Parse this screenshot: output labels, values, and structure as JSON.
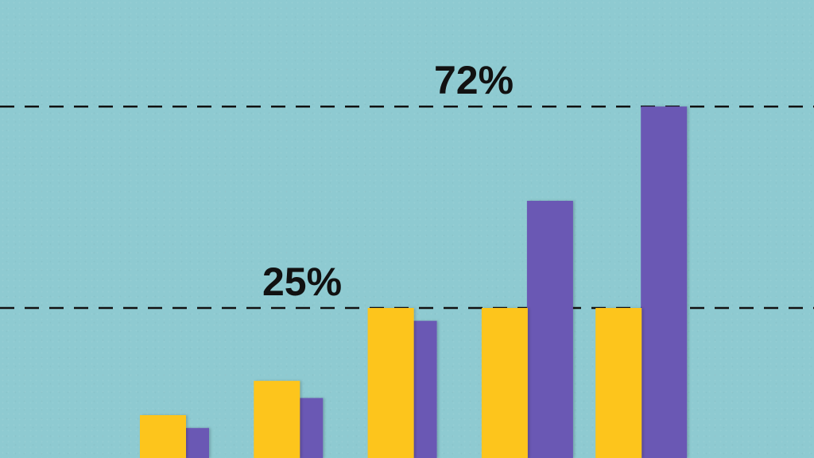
{
  "chart_data": {
    "type": "bar",
    "categories": [
      "",
      "",
      "",
      "",
      ""
    ],
    "series": [
      {
        "color": "#fdc51a",
        "values": [
          10,
          18,
          35,
          35,
          35
        ]
      },
      {
        "color": "#6a58b4",
        "values": [
          7,
          14,
          32,
          60,
          82
        ]
      }
    ],
    "reference_lines": [
      {
        "value": 35,
        "label": "25%"
      },
      {
        "value": 82,
        "label": "72%"
      }
    ],
    "xlabel": "",
    "ylabel": "",
    "ylim": [
      0,
      100
    ],
    "grid": false,
    "legend": "none",
    "background_color": "#8ecad1"
  }
}
